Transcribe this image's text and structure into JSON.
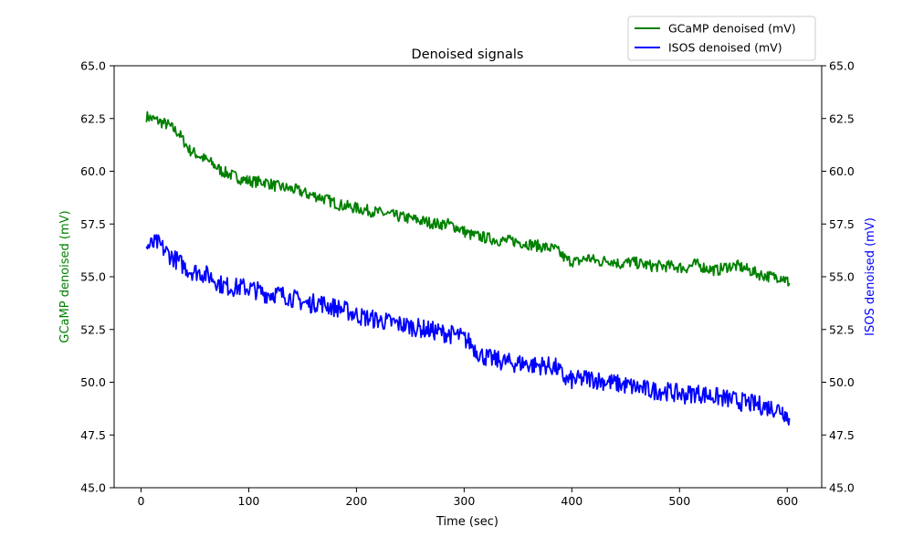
{
  "chart_data": {
    "type": "line",
    "title": "Denoised signals",
    "xlabel": "Time (sec)",
    "ylabel_left": "GCaMP denoised (mV)",
    "ylabel_right": "ISOS denoised (mV)",
    "xlim": [
      -25,
      632
    ],
    "ylim_left": [
      45,
      65
    ],
    "ylim_right": [
      45,
      65
    ],
    "x_ticks": [
      0,
      100,
      200,
      300,
      400,
      500,
      600
    ],
    "y_ticks": [
      45.0,
      47.5,
      50.0,
      52.5,
      55.0,
      57.5,
      60.0,
      62.5,
      65.0
    ],
    "legend_position": "above top-right",
    "grid": false,
    "colors": {
      "gcamp": "#008000",
      "isos": "#0000ff"
    },
    "series": [
      {
        "name": "GCaMP denoised (mV)",
        "axis": "left",
        "color": "#008000",
        "x": [
          5,
          15,
          25,
          35,
          45,
          55,
          65,
          75,
          85,
          95,
          105,
          115,
          125,
          135,
          145,
          155,
          165,
          175,
          185,
          195,
          205,
          215,
          225,
          235,
          245,
          255,
          265,
          275,
          285,
          295,
          305,
          315,
          325,
          335,
          345,
          355,
          365,
          375,
          385,
          395,
          405,
          415,
          425,
          435,
          445,
          455,
          465,
          475,
          485,
          495,
          505,
          515,
          525,
          535,
          545,
          555,
          565,
          575,
          585,
          595,
          602
        ],
        "values": [
          62.6,
          62.4,
          62.2,
          61.8,
          61.0,
          60.7,
          60.4,
          60.0,
          59.8,
          59.6,
          59.5,
          59.5,
          59.3,
          59.2,
          59.1,
          58.9,
          58.8,
          58.6,
          58.4,
          58.3,
          58.2,
          58.1,
          58.0,
          57.9,
          57.8,
          57.7,
          57.6,
          57.5,
          57.5,
          57.3,
          57.0,
          56.9,
          56.8,
          56.7,
          56.7,
          56.6,
          56.5,
          56.4,
          56.3,
          55.8,
          55.7,
          55.9,
          55.7,
          55.8,
          55.6,
          55.7,
          55.6,
          55.5,
          55.5,
          55.5,
          55.4,
          55.6,
          55.4,
          55.3,
          55.5,
          55.5,
          55.3,
          55.1,
          55.0,
          55.0,
          54.7
        ]
      },
      {
        "name": "ISOS denoised (mV)",
        "axis": "right",
        "color": "#0000ff",
        "x": [
          5,
          15,
          25,
          35,
          45,
          55,
          65,
          75,
          85,
          95,
          105,
          115,
          125,
          135,
          145,
          155,
          165,
          175,
          185,
          195,
          205,
          215,
          225,
          235,
          245,
          255,
          265,
          275,
          285,
          295,
          305,
          315,
          325,
          335,
          345,
          355,
          365,
          375,
          385,
          395,
          405,
          415,
          425,
          435,
          445,
          455,
          465,
          475,
          485,
          495,
          505,
          515,
          525,
          535,
          545,
          555,
          565,
          575,
          585,
          595,
          602
        ],
        "values": [
          56.4,
          56.6,
          56.1,
          55.7,
          55.3,
          55.2,
          55.0,
          54.6,
          54.5,
          54.5,
          54.4,
          54.2,
          54.2,
          54.1,
          53.9,
          53.7,
          53.8,
          53.6,
          53.5,
          53.3,
          53.1,
          53.0,
          52.9,
          52.8,
          52.7,
          52.6,
          52.5,
          52.4,
          52.3,
          52.2,
          51.9,
          51.3,
          51.1,
          51.0,
          50.9,
          50.9,
          50.8,
          50.8,
          50.7,
          50.1,
          50.1,
          50.2,
          50.1,
          50.0,
          49.9,
          49.8,
          49.7,
          49.6,
          49.6,
          49.5,
          49.4,
          49.5,
          49.4,
          49.3,
          49.2,
          49.1,
          49.0,
          48.9,
          48.8,
          48.7,
          48.3
        ]
      }
    ]
  }
}
